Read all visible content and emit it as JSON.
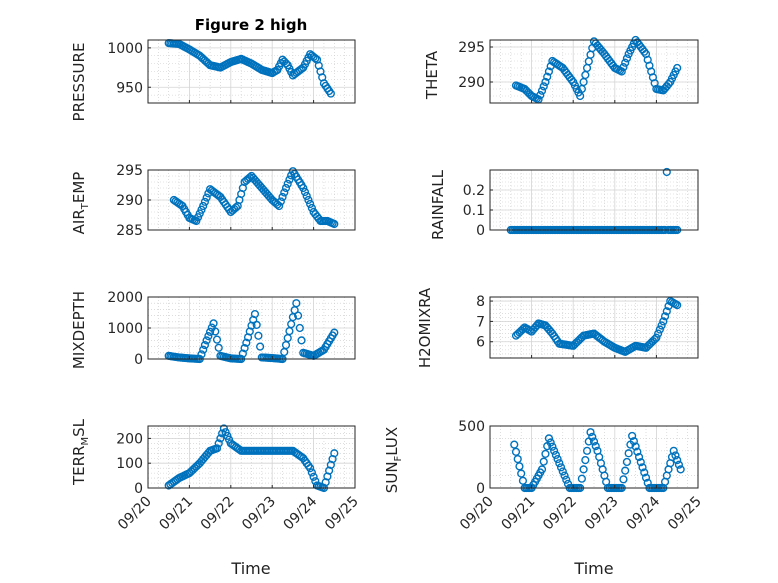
{
  "figure": {
    "title": "Figure 2 high",
    "xlabel": "Time"
  },
  "x_axis": {
    "type": "date",
    "range": [
      "2019-09-20T00:00",
      "2019-09-25T00:00"
    ],
    "ticks": [
      {
        "value": "2019-09-20T00:00",
        "label": "09/20"
      },
      {
        "value": "2019-09-21T00:00",
        "label": "09/21"
      },
      {
        "value": "2019-09-22T00:00",
        "label": "09/22"
      },
      {
        "value": "2019-09-23T00:00",
        "label": "09/23"
      },
      {
        "value": "2019-09-24T00:00",
        "label": "09/24"
      },
      {
        "value": "2019-09-25T00:00",
        "label": "09/25"
      }
    ]
  },
  "style": {
    "marker_color": "#0072BD",
    "grid": true,
    "minor_grid": true,
    "background": "#ffffff"
  },
  "chart_data": [
    {
      "type": "scatter",
      "ylabel": "PRESSURE",
      "ylim": [
        930,
        1010
      ],
      "yticks": [
        {
          "value": 950,
          "label": "950"
        },
        {
          "value": 1000,
          "label": "1000"
        }
      ],
      "x": [
        "2019-09-20T12:00",
        "2019-09-20T18:00",
        "2019-09-21T00:00",
        "2019-09-21T06:00",
        "2019-09-21T12:00",
        "2019-09-21T18:00",
        "2019-09-22T00:00",
        "2019-09-22T06:00",
        "2019-09-22T12:00",
        "2019-09-22T18:00",
        "2019-09-23T00:00",
        "2019-09-23T03:00",
        "2019-09-23T06:00",
        "2019-09-23T09:00",
        "2019-09-23T12:00",
        "2019-09-23T18:00",
        "2019-09-23T22:00",
        "2019-09-24T02:00",
        "2019-09-24T06:00",
        "2019-09-24T10:00"
      ],
      "y": [
        1006,
        1005,
        998,
        990,
        978,
        975,
        982,
        986,
        980,
        972,
        968,
        972,
        985,
        978,
        965,
        975,
        992,
        985,
        955,
        942
      ]
    },
    {
      "type": "scatter",
      "ylabel": "THETA",
      "ylim": [
        287,
        296
      ],
      "yticks": [
        {
          "value": 290,
          "label": "290"
        },
        {
          "value": 295,
          "label": "295"
        }
      ],
      "x": [
        "2019-09-20T15:00",
        "2019-09-20T20:00",
        "2019-09-21T00:00",
        "2019-09-21T04:00",
        "2019-09-21T08:00",
        "2019-09-21T12:00",
        "2019-09-21T18:00",
        "2019-09-22T00:00",
        "2019-09-22T04:00",
        "2019-09-22T08:00",
        "2019-09-22T12:00",
        "2019-09-22T18:00",
        "2019-09-23T00:00",
        "2019-09-23T04:00",
        "2019-09-23T08:00",
        "2019-09-23T12:00",
        "2019-09-23T18:00",
        "2019-09-24T00:00",
        "2019-09-24T04:00",
        "2019-09-24T08:00",
        "2019-09-24T12:00"
      ],
      "y": [
        289.5,
        289,
        288,
        287.5,
        290,
        293,
        292,
        290,
        288,
        292,
        295.8,
        294,
        292,
        291.5,
        294,
        296,
        294,
        289,
        288.8,
        290,
        292
      ]
    },
    {
      "type": "scatter",
      "ylabel": "AIR_TEMP",
      "ylim": [
        285,
        295
      ],
      "yticks": [
        {
          "value": 285,
          "label": "285"
        },
        {
          "value": 290,
          "label": "290"
        },
        {
          "value": 295,
          "label": "295"
        }
      ],
      "x": [
        "2019-09-20T15:00",
        "2019-09-20T20:00",
        "2019-09-21T00:00",
        "2019-09-21T04:00",
        "2019-09-21T08:00",
        "2019-09-21T12:00",
        "2019-09-21T18:00",
        "2019-09-22T00:00",
        "2019-09-22T04:00",
        "2019-09-22T08:00",
        "2019-09-22T12:00",
        "2019-09-22T18:00",
        "2019-09-23T00:00",
        "2019-09-23T04:00",
        "2019-09-23T08:00",
        "2019-09-23T12:00",
        "2019-09-23T18:00",
        "2019-09-24T00:00",
        "2019-09-24T04:00",
        "2019-09-24T08:00",
        "2019-09-24T12:00"
      ],
      "y": [
        290,
        289,
        287,
        286.5,
        289,
        291.8,
        290.5,
        288,
        289,
        293,
        294,
        292,
        290,
        289,
        292,
        294.8,
        292,
        288,
        286.5,
        286.5,
        286
      ]
    },
    {
      "type": "scatter",
      "ylabel": "RAINFALL",
      "ylim": [
        0,
        0.3
      ],
      "yticks": [
        {
          "value": 0,
          "label": "0"
        },
        {
          "value": 0.1,
          "label": "0.1"
        },
        {
          "value": 0.2,
          "label": "0.2"
        }
      ],
      "x": [
        "2019-09-20T12:00",
        "2019-09-21T00:00",
        "2019-09-21T12:00",
        "2019-09-22T00:00",
        "2019-09-22T12:00",
        "2019-09-23T00:00",
        "2019-09-23T12:00",
        "2019-09-24T00:00",
        "2019-09-24T06:00",
        "2019-09-24T12:00"
      ],
      "y": [
        0,
        0,
        0,
        0,
        0,
        0,
        0,
        0,
        0.29,
        0
      ]
    },
    {
      "type": "scatter",
      "ylabel": "MIXDEPTH",
      "ylim": [
        0,
        2000
      ],
      "yticks": [
        {
          "value": 0,
          "label": "0"
        },
        {
          "value": 1000,
          "label": "1000"
        },
        {
          "value": 2000,
          "label": "2000"
        }
      ],
      "x": [
        "2019-09-20T12:00",
        "2019-09-20T18:00",
        "2019-09-21T00:00",
        "2019-09-21T06:00",
        "2019-09-21T10:00",
        "2019-09-21T14:00",
        "2019-09-21T18:00",
        "2019-09-22T00:00",
        "2019-09-22T06:00",
        "2019-09-22T10:00",
        "2019-09-22T14:00",
        "2019-09-22T18:00",
        "2019-09-23T00:00",
        "2019-09-23T06:00",
        "2019-09-23T10:00",
        "2019-09-23T14:00",
        "2019-09-23T18:00",
        "2019-09-24T00:00",
        "2019-09-24T06:00",
        "2019-09-24T12:00"
      ],
      "y": [
        100,
        50,
        20,
        0,
        600,
        1150,
        100,
        20,
        0,
        700,
        1450,
        50,
        30,
        0,
        900,
        1800,
        200,
        100,
        300,
        850
      ]
    },
    {
      "type": "scatter",
      "ylabel": "H2OMIXRA",
      "ylim": [
        5.2,
        8.2
      ],
      "yticks": [
        {
          "value": 6,
          "label": "6"
        },
        {
          "value": 7,
          "label": "7"
        },
        {
          "value": 8,
          "label": "8"
        }
      ],
      "x": [
        "2019-09-20T15:00",
        "2019-09-20T20:00",
        "2019-09-21T00:00",
        "2019-09-21T04:00",
        "2019-09-21T08:00",
        "2019-09-21T12:00",
        "2019-09-21T16:00",
        "2019-09-22T00:00",
        "2019-09-22T06:00",
        "2019-09-22T12:00",
        "2019-09-22T18:00",
        "2019-09-23T00:00",
        "2019-09-23T06:00",
        "2019-09-23T12:00",
        "2019-09-23T18:00",
        "2019-09-24T00:00",
        "2019-09-24T04:00",
        "2019-09-24T08:00",
        "2019-09-24T12:00"
      ],
      "y": [
        6.3,
        6.7,
        6.5,
        6.9,
        6.8,
        6.4,
        5.9,
        5.8,
        6.3,
        6.4,
        6.0,
        5.7,
        5.5,
        5.8,
        5.7,
        6.2,
        7.0,
        8.0,
        7.8
      ]
    },
    {
      "type": "scatter",
      "ylabel": "TERR_MSL",
      "ylim": [
        0,
        250
      ],
      "yticks": [
        {
          "value": 0,
          "label": "0"
        },
        {
          "value": 100,
          "label": "100"
        },
        {
          "value": 200,
          "label": "200"
        }
      ],
      "x": [
        "2019-09-20T12:00",
        "2019-09-20T18:00",
        "2019-09-21T00:00",
        "2019-09-21T06:00",
        "2019-09-21T12:00",
        "2019-09-21T16:00",
        "2019-09-21T20:00",
        "2019-09-22T00:00",
        "2019-09-22T06:00",
        "2019-09-22T12:00",
        "2019-09-22T18:00",
        "2019-09-23T00:00",
        "2019-09-23T06:00",
        "2019-09-23T12:00",
        "2019-09-23T18:00",
        "2019-09-23T22:00",
        "2019-09-24T02:00",
        "2019-09-24T06:00",
        "2019-09-24T12:00"
      ],
      "y": [
        10,
        40,
        60,
        100,
        150,
        160,
        240,
        180,
        150,
        150,
        150,
        150,
        150,
        150,
        120,
        80,
        10,
        0,
        140
      ]
    },
    {
      "type": "scatter",
      "ylabel": "SUN_FLUX",
      "ylim": [
        0,
        500
      ],
      "yticks": [
        {
          "value": 0,
          "label": "0"
        },
        {
          "value": 500,
          "label": "500"
        }
      ],
      "x": [
        "2019-09-20T14:00",
        "2019-09-20T20:00",
        "2019-09-21T00:00",
        "2019-09-21T06:00",
        "2019-09-21T10:00",
        "2019-09-21T16:00",
        "2019-09-21T22:00",
        "2019-09-22T04:00",
        "2019-09-22T10:00",
        "2019-09-22T14:00",
        "2019-09-22T20:00",
        "2019-09-23T04:00",
        "2019-09-23T10:00",
        "2019-09-23T14:00",
        "2019-09-23T20:00",
        "2019-09-24T04:00",
        "2019-09-24T10:00",
        "2019-09-24T14:00"
      ],
      "y": [
        350,
        0,
        0,
        150,
        400,
        200,
        0,
        0,
        450,
        300,
        0,
        0,
        420,
        250,
        0,
        0,
        300,
        150
      ]
    }
  ]
}
